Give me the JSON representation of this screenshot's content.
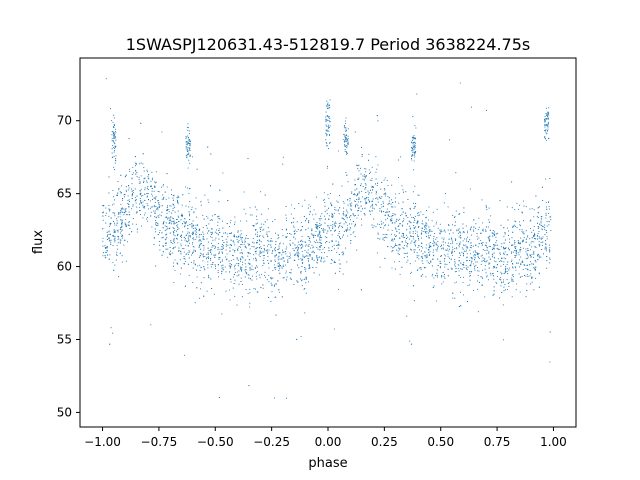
{
  "chart_data": {
    "type": "scatter",
    "title": "1SWASPJ120631.43-512819.7 Period 3638224.75s",
    "xlabel": "phase",
    "ylabel": "flux",
    "xlim": [
      -1.1,
      1.1
    ],
    "ylim": [
      49,
      74.3
    ],
    "x_ticks": [
      -1.0,
      -0.75,
      -0.5,
      -0.25,
      0.0,
      0.25,
      0.5,
      0.75,
      1.0
    ],
    "x_tick_labels": [
      "−1.00",
      "−0.75",
      "−0.50",
      "−0.25",
      "0.00",
      "0.25",
      "0.50",
      "0.75",
      "1.00"
    ],
    "y_ticks": [
      50,
      55,
      60,
      65,
      70
    ],
    "y_tick_labels": [
      "50",
      "55",
      "60",
      "65",
      "70"
    ],
    "grid": false,
    "marker_color": "#1f77b4",
    "series": [
      {
        "profile": [
          {
            "phase": 0.0,
            "flux": 62.6
          },
          {
            "phase": 0.05,
            "flux": 62.2
          },
          {
            "phase": 0.1,
            "flux": 63.5
          },
          {
            "phase": 0.15,
            "flux": 65.3
          },
          {
            "phase": 0.2,
            "flux": 64.8
          },
          {
            "phase": 0.25,
            "flux": 63.6
          },
          {
            "phase": 0.3,
            "flux": 62.8
          },
          {
            "phase": 0.35,
            "flux": 62.2
          },
          {
            "phase": 0.4,
            "flux": 62.0
          },
          {
            "phase": 0.45,
            "flux": 61.3
          },
          {
            "phase": 0.5,
            "flux": 61.2
          },
          {
            "phase": 0.55,
            "flux": 61.0
          },
          {
            "phase": 0.6,
            "flux": 60.8
          },
          {
            "phase": 0.65,
            "flux": 60.6
          },
          {
            "phase": 0.7,
            "flux": 61.2
          },
          {
            "phase": 0.75,
            "flux": 60.3
          },
          {
            "phase": 0.8,
            "flux": 60.9
          },
          {
            "phase": 0.85,
            "flux": 61.3
          },
          {
            "phase": 0.9,
            "flux": 61.0
          },
          {
            "phase": 0.95,
            "flux": 62.0
          },
          {
            "phase": 1.0,
            "flux": 62.6
          }
        ],
        "scatter": 1.3,
        "bursts": [
          {
            "phase": 0.0,
            "flux": 69.9,
            "spread": 0.9
          },
          {
            "phase": -0.95,
            "flux": 68.7,
            "spread": 0.8
          },
          {
            "phase": -0.62,
            "flux": 68.3,
            "spread": 0.6
          },
          {
            "phase": 0.38,
            "flux": 68.3,
            "spread": 0.6
          },
          {
            "phase": 0.97,
            "flux": 69.8,
            "spread": 0.7
          },
          {
            "phase": 0.08,
            "flux": 68.6,
            "spread": 0.7
          }
        ]
      }
    ]
  }
}
